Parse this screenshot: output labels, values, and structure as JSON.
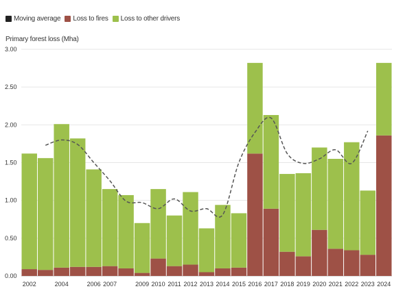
{
  "chart_data": {
    "type": "bar",
    "stacked": true,
    "ylabel": "Primary forest loss (Mha)",
    "ylim": [
      0,
      3
    ],
    "y_ticks": [
      "0.00",
      "0.50",
      "1.00",
      "1.50",
      "2.00",
      "2.50",
      "3.00"
    ],
    "grid": true,
    "legend_position": "top-left",
    "categories": [
      "2002",
      "2003",
      "2004",
      "2005",
      "2006",
      "2007",
      "2008",
      "2009",
      "2010",
      "2011",
      "2012",
      "2013",
      "2014",
      "2015",
      "2016",
      "2017",
      "2018",
      "2019",
      "2020",
      "2021",
      "2022",
      "2023",
      "2024"
    ],
    "x_tick_labels": [
      "2002",
      "",
      "2004",
      "",
      "2006",
      "2007",
      "",
      "2009",
      "2010",
      "2011",
      "2012",
      "2013",
      "2014",
      "2015",
      "2016",
      "2017",
      "2018",
      "2019",
      "2020",
      "2021",
      "2022",
      "2023",
      "2024"
    ],
    "series": [
      {
        "name": "Loss to fires",
        "color": "#9e5146",
        "values": [
          0.09,
          0.08,
          0.11,
          0.12,
          0.12,
          0.13,
          0.1,
          0.04,
          0.23,
          0.13,
          0.15,
          0.05,
          0.1,
          0.11,
          1.62,
          0.89,
          0.32,
          0.26,
          0.61,
          0.36,
          0.34,
          0.28,
          1.86
        ]
      },
      {
        "name": "Loss to other drivers",
        "color": "#9dc04c",
        "values": [
          1.53,
          1.48,
          1.9,
          1.7,
          1.29,
          1.02,
          0.97,
          0.66,
          0.92,
          0.67,
          0.96,
          0.58,
          0.84,
          0.72,
          1.2,
          1.24,
          1.03,
          1.1,
          1.09,
          1.19,
          1.43,
          0.85,
          0.96
        ]
      },
      {
        "name": "Moving average",
        "color": "#555555",
        "line_style": "dashed",
        "points": [
          {
            "x": "2003",
            "y": 1.73
          },
          {
            "x": "2004",
            "y": 1.8
          },
          {
            "x": "2005",
            "y": 1.74
          },
          {
            "x": "2006",
            "y": 1.5
          },
          {
            "x": "2007",
            "y": 1.26
          },
          {
            "x": "2008",
            "y": 0.99
          },
          {
            "x": "2009",
            "y": 0.97
          },
          {
            "x": "2010",
            "y": 0.89
          },
          {
            "x": "2011",
            "y": 1.02
          },
          {
            "x": "2012",
            "y": 0.86
          },
          {
            "x": "2013",
            "y": 0.89
          },
          {
            "x": "2014",
            "y": 0.81
          },
          {
            "x": "2015",
            "y": 1.5
          },
          {
            "x": "2016",
            "y": 1.9
          },
          {
            "x": "2017",
            "y": 2.09
          },
          {
            "x": "2018",
            "y": 1.62
          },
          {
            "x": "2019",
            "y": 1.49
          },
          {
            "x": "2020",
            "y": 1.55
          },
          {
            "x": "2021",
            "y": 1.67
          },
          {
            "x": "2022",
            "y": 1.49
          },
          {
            "x": "2023",
            "y": 1.92
          }
        ]
      }
    ]
  },
  "legend": [
    {
      "label": "Moving average",
      "color": "#222222"
    },
    {
      "label": "Loss to fires",
      "color": "#9e5146"
    },
    {
      "label": "Loss to other drivers",
      "color": "#9dc04c"
    }
  ]
}
